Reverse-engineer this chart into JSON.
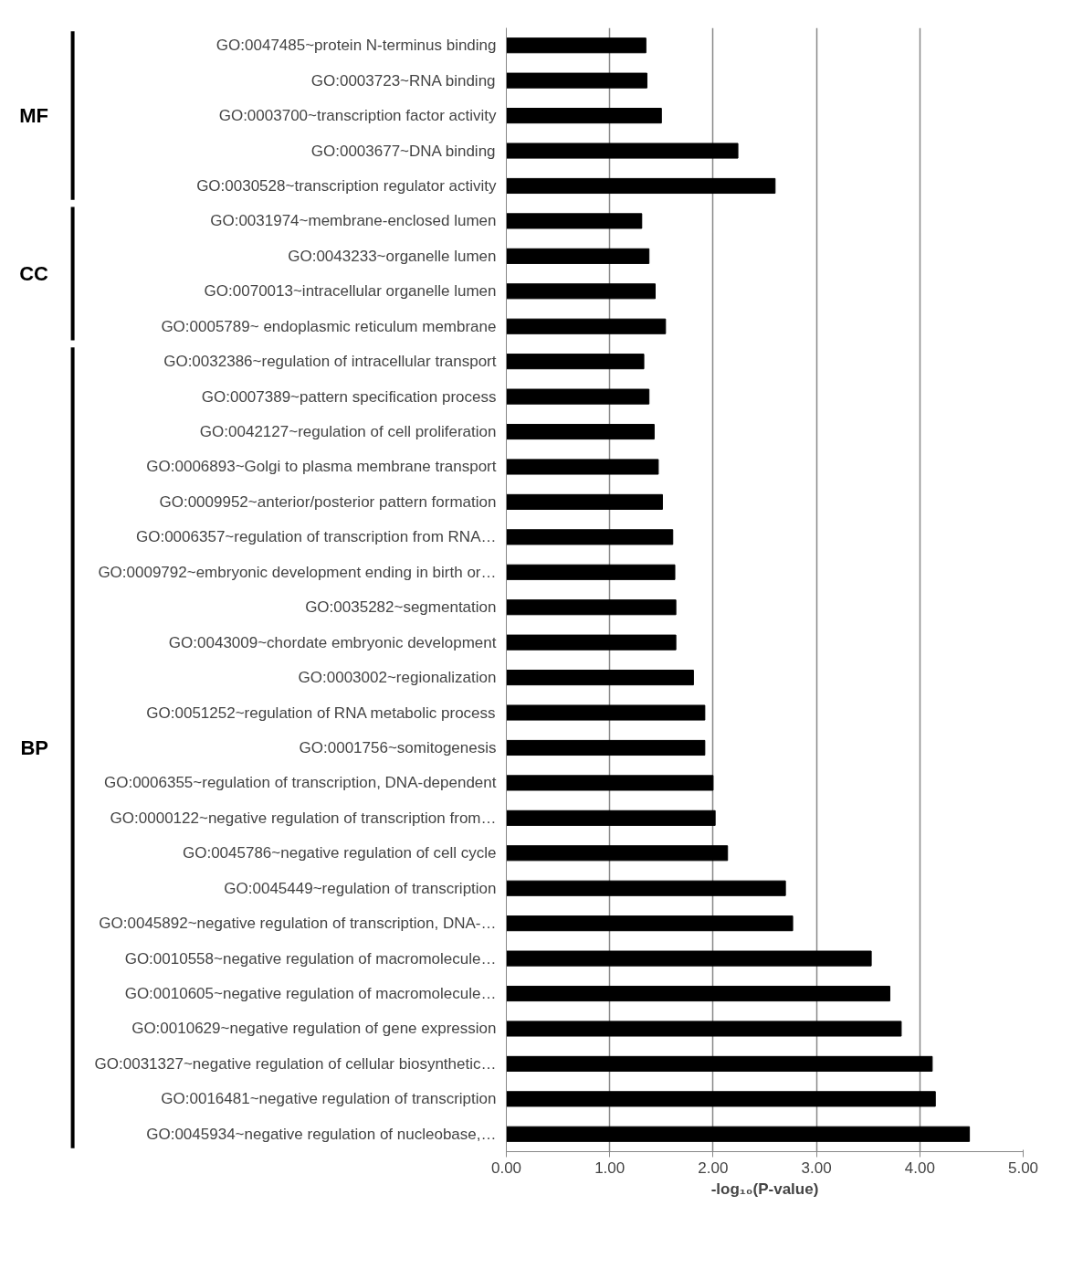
{
  "chart_data": {
    "type": "bar",
    "orientation": "horizontal",
    "xlabel": "-log₁₀(P-value)",
    "categories": [
      "GO:0047485~protein N-terminus binding",
      "GO:0003723~RNA binding",
      "GO:0003700~transcription factor activity",
      "GO:0003677~DNA binding",
      "GO:0030528~transcription regulator activity",
      "GO:0031974~membrane-enclosed lumen",
      "GO:0043233~organelle lumen",
      "GO:0070013~intracellular organelle lumen",
      "GO:0005789~ endoplasmic reticulum membrane",
      "GO:0032386~regulation of intracellular transport",
      "GO:0007389~pattern specification process",
      "GO:0042127~regulation of cell proliferation",
      "GO:0006893~Golgi to plasma membrane transport",
      "GO:0009952~anterior/posterior pattern formation",
      "GO:0006357~regulation of transcription from RNA…",
      "GO:0009792~embryonic development ending in birth or…",
      "GO:0035282~segmentation",
      "GO:0043009~chordate embryonic development",
      "GO:0003002~regionalization",
      "GO:0051252~regulation of RNA metabolic process",
      "GO:0001756~somitogenesis",
      "GO:0006355~regulation of transcription, DNA-dependent",
      "GO:0000122~negative regulation of transcription from…",
      "GO:0045786~negative regulation of cell cycle",
      "GO:0045449~regulation of transcription",
      "GO:0045892~negative regulation of transcription, DNA-…",
      "GO:0010558~negative regulation of macromolecule…",
      "GO:0010605~negative regulation of macromolecule…",
      "GO:0010629~negative regulation of gene expression",
      "GO:0031327~negative regulation of cellular biosynthetic…",
      "GO:0016481~negative regulation of transcription",
      "GO:0045934~negative regulation of nucleobase,…"
    ],
    "values": [
      1.35,
      1.36,
      1.5,
      2.24,
      2.6,
      1.31,
      1.38,
      1.44,
      1.54,
      1.33,
      1.38,
      1.43,
      1.47,
      1.51,
      1.61,
      1.63,
      1.64,
      1.64,
      1.81,
      1.92,
      1.92,
      2.0,
      2.02,
      2.14,
      2.7,
      2.77,
      3.53,
      3.71,
      3.82,
      4.12,
      4.15,
      4.48
    ],
    "color": "#000000",
    "xlim": [
      0,
      5
    ],
    "xticks": [
      {
        "value": 0,
        "label": "0.00"
      },
      {
        "value": 1,
        "label": "1.00"
      },
      {
        "value": 2,
        "label": "2.00"
      },
      {
        "value": 3,
        "label": "3.00"
      },
      {
        "value": 4,
        "label": "4.00"
      },
      {
        "value": 5,
        "label": "5.00"
      }
    ],
    "grid": "x",
    "annotations": [
      "MF",
      "CC",
      "BP"
    ]
  }
}
